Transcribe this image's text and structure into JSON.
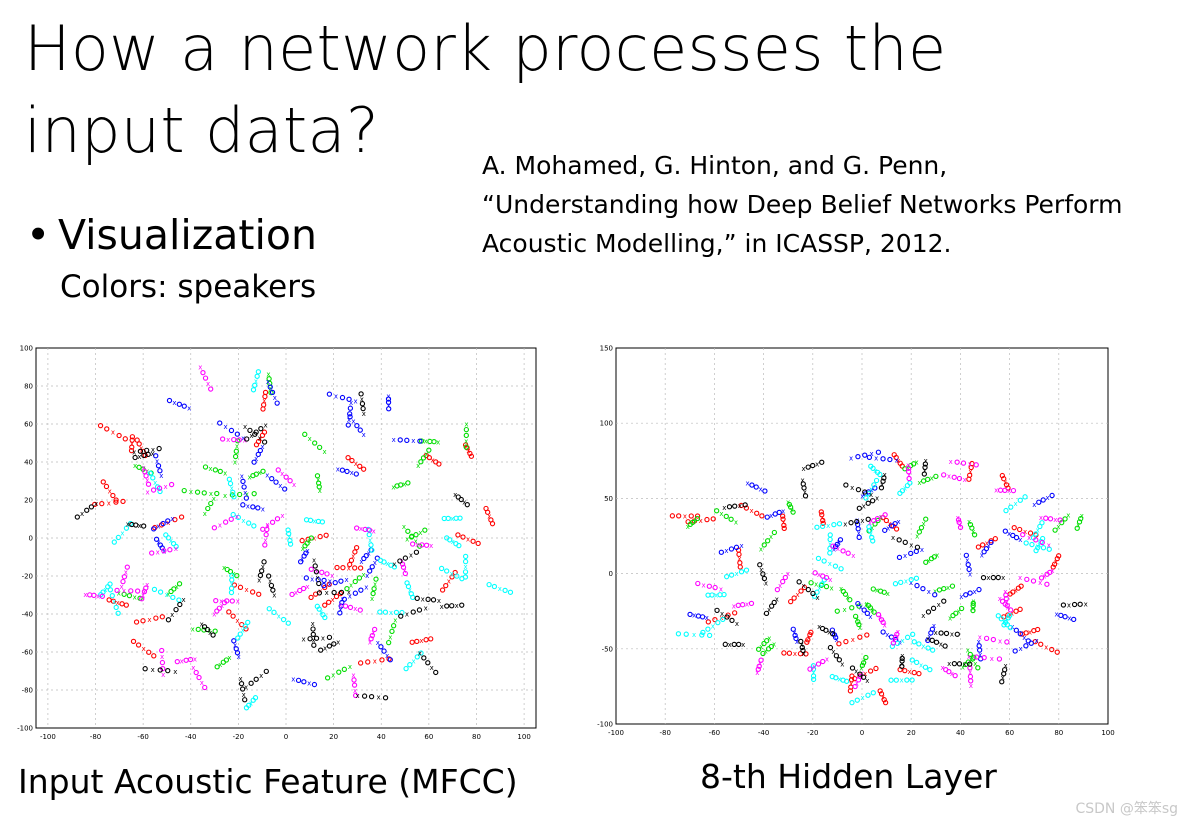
{
  "slide": {
    "title_lines": [
      "How a network processes the",
      "input data?"
    ],
    "bullet": "Visualization",
    "subtext": "Colors: speakers",
    "reference_lines": [
      "A. Mohamed, G. Hinton, and G. Penn,",
      "“Understanding how Deep Belief Networks Perform",
      "Acoustic Modelling,” in ICASSP, 2012."
    ],
    "watermark": "CSDN @笨笨sg"
  },
  "chart_data": [
    {
      "type": "scatter",
      "title": "",
      "caption": "Input Acoustic Feature (MFCC)",
      "xlabel": "",
      "ylabel": "",
      "xlim": [
        -105,
        105
      ],
      "ylim": [
        -100,
        100
      ],
      "x_ticks": [
        "-100",
        "-80",
        "-60",
        "-40",
        "-20",
        "0",
        "20",
        "40",
        "60",
        "80",
        "100"
      ],
      "y_ticks": [
        "100",
        "80",
        "60",
        "40",
        "20",
        "0",
        "-20",
        "-40",
        "-60",
        "-80",
        "-100"
      ],
      "grid": true,
      "colors": [
        "#ff0000",
        "#00dd00",
        "#0000ff",
        "#00ffff",
        "#ff00ff",
        "#000000"
      ],
      "speakers": 6,
      "points_per_speaker": 130,
      "cloud_center": [
        5,
        0
      ],
      "cloud_radius": [
        93,
        88
      ]
    },
    {
      "type": "scatter",
      "title": "",
      "caption": "8-th Hidden Layer",
      "xlabel": "",
      "ylabel": "",
      "xlim": [
        -100,
        100
      ],
      "ylim": [
        -100,
        150
      ],
      "x_ticks": [
        "-100",
        "-80",
        "-60",
        "-40",
        "-20",
        "0",
        "20",
        "40",
        "60",
        "80",
        "100"
      ],
      "y_ticks": [
        "150",
        "100",
        "50",
        "0",
        "-50",
        "-100"
      ],
      "grid": true,
      "colors": [
        "#ff0000",
        "#00dd00",
        "#0000ff",
        "#00ffff",
        "#ff00ff",
        "#000000"
      ],
      "speakers": 6,
      "points_per_speaker": 130,
      "cloud_center": [
        10,
        0
      ],
      "cloud_radius": [
        88,
        80
      ]
    }
  ]
}
